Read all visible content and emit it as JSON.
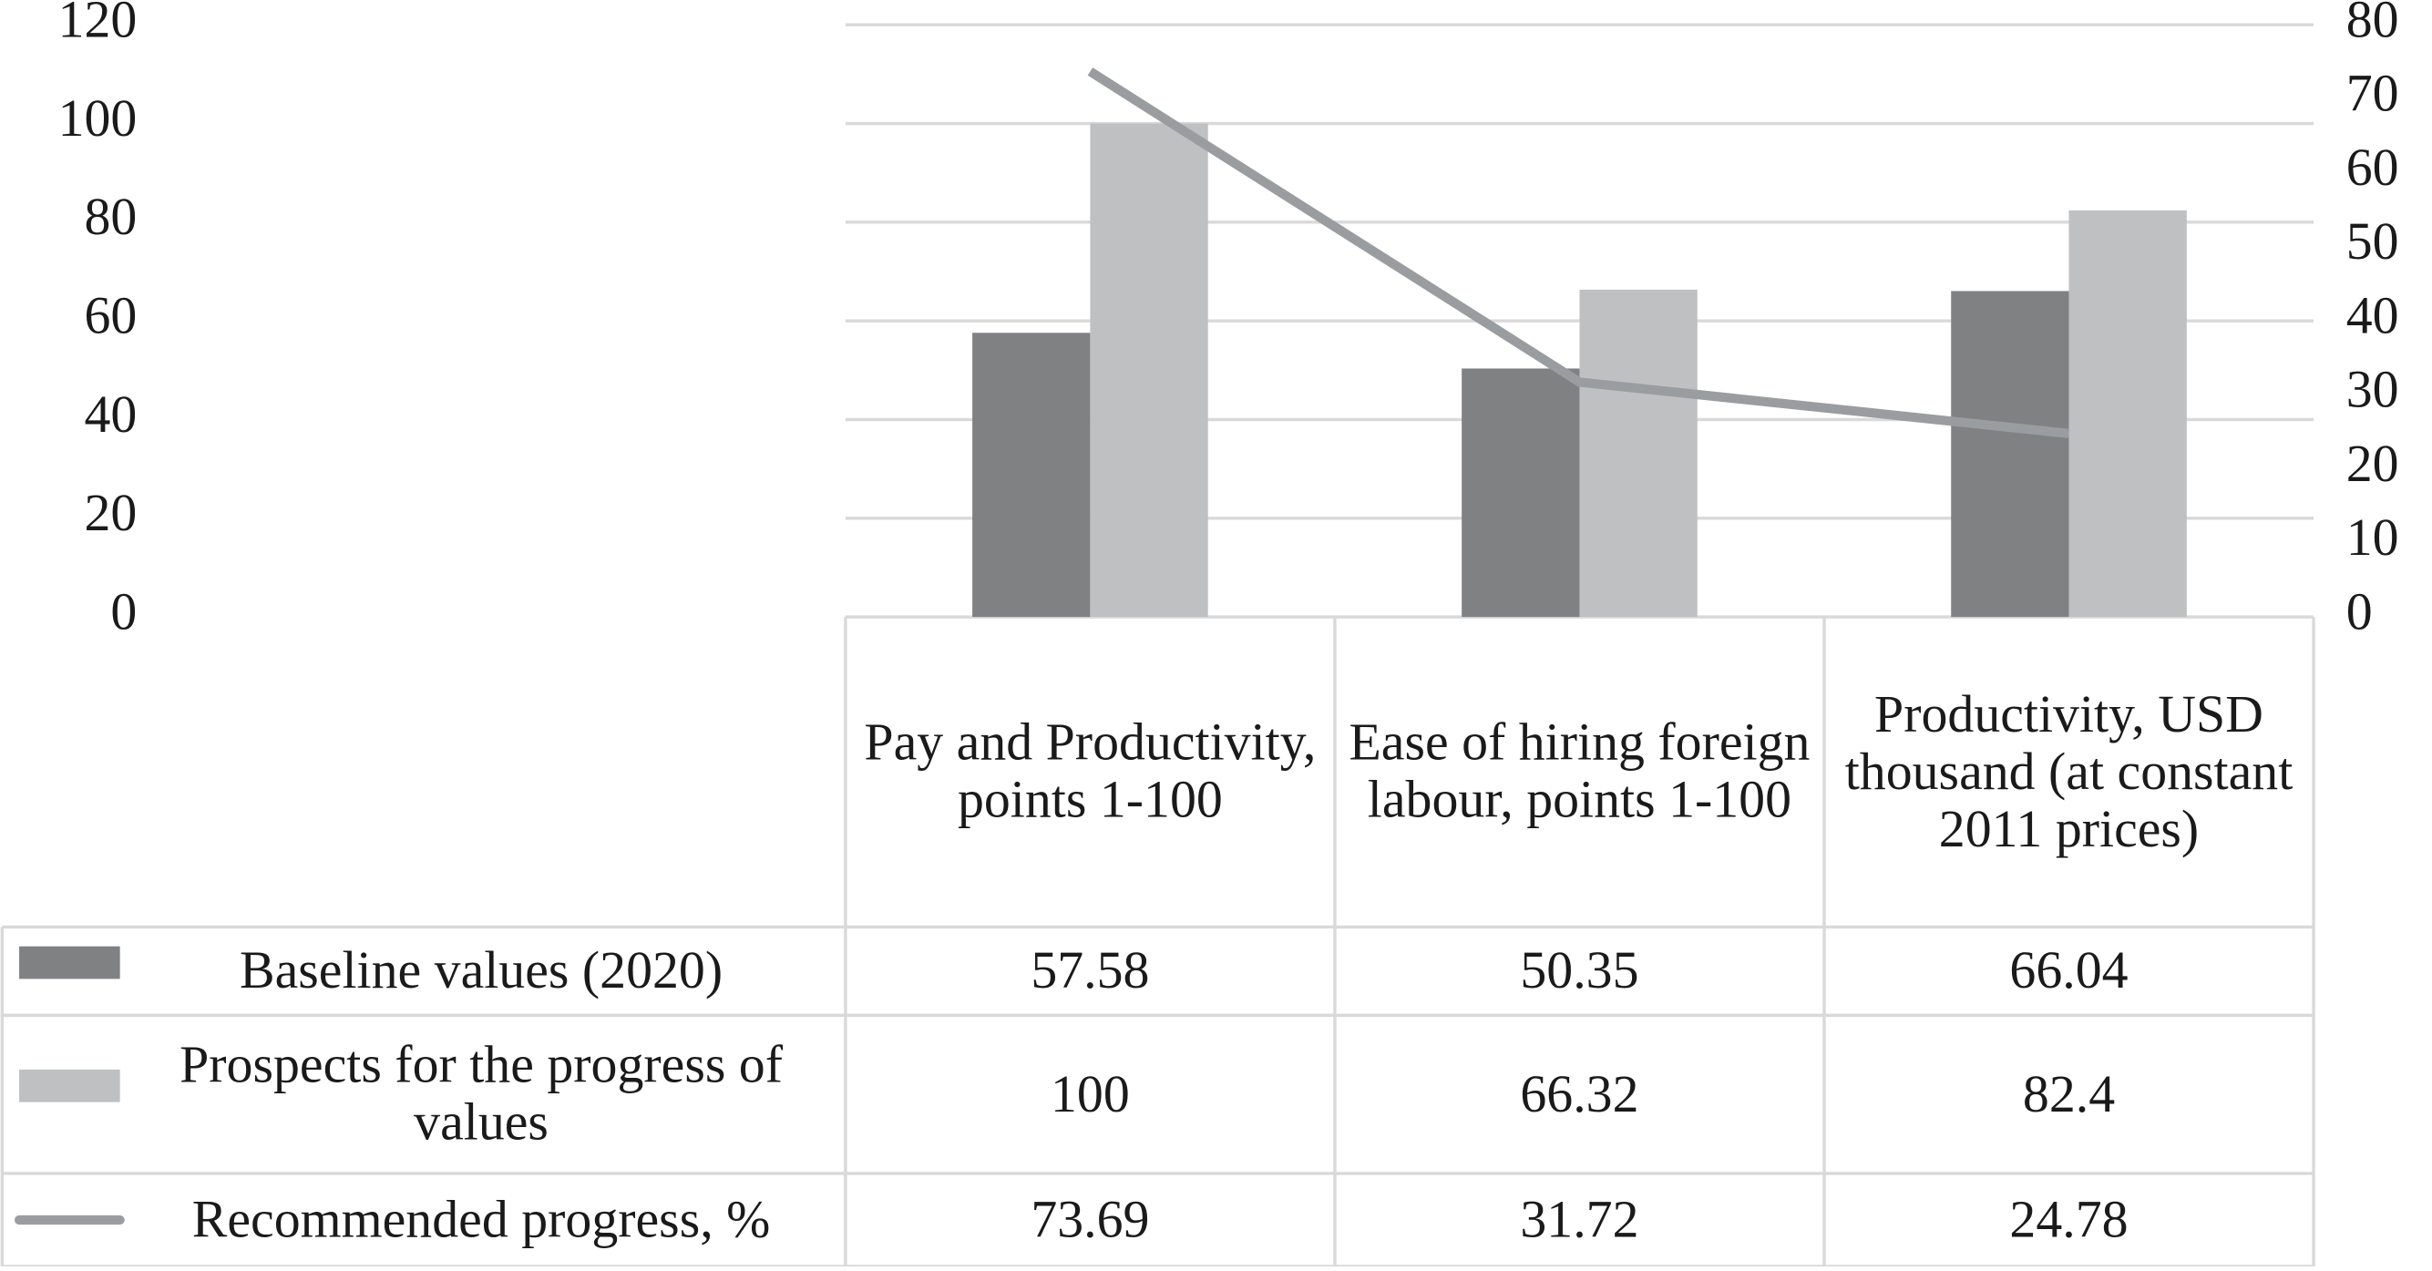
{
  "chart_data": {
    "type": "bar",
    "categories": [
      "Pay and Productivity, points 1-100",
      "Ease of hiring foreign labour, points 1-100",
      "Productivity, USD thousand (at constant 2011 prices)"
    ],
    "series": [
      {
        "name": "Baseline values (2020)",
        "color": "#808183",
        "type": "bar",
        "values": [
          57.58,
          50.35,
          66.04
        ]
      },
      {
        "name": "Prospects for the progress of values",
        "color": "#bfc0c2",
        "type": "bar",
        "values": [
          100,
          66.32,
          82.4
        ]
      },
      {
        "name": "Recommended progress, %",
        "color": "#9a9da0",
        "type": "line",
        "axis": "y2",
        "values": [
          73.69,
          31.72,
          24.78
        ]
      }
    ],
    "ylim": [
      0,
      120
    ],
    "yticks": [
      0,
      20,
      40,
      60,
      80,
      100,
      120
    ],
    "y2lim": [
      0,
      80
    ],
    "y2ticks": [
      0,
      10,
      20,
      30,
      40,
      50,
      60,
      70,
      80
    ],
    "grid": true
  }
}
